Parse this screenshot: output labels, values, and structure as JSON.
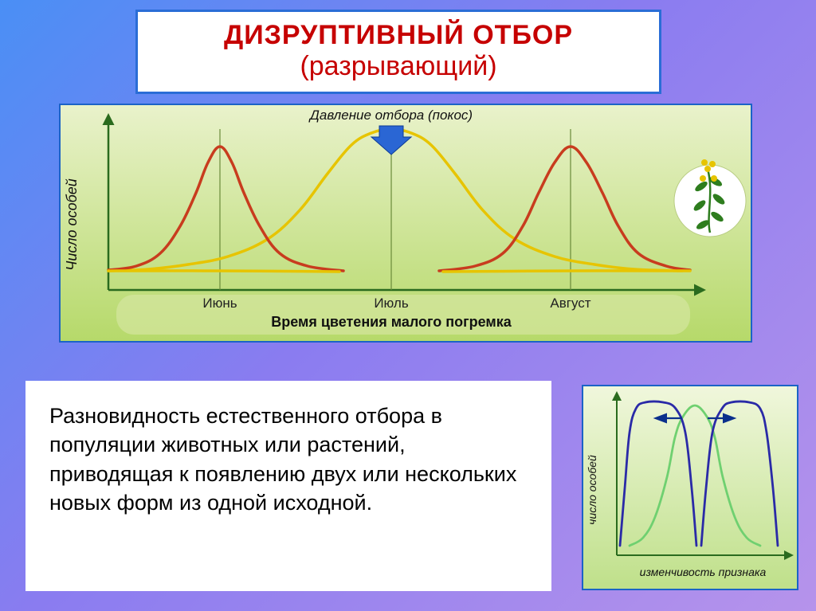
{
  "title": {
    "line1": "ДИЗРУПТИВНЫЙ ОТБОР",
    "line2": "(разрывающий)"
  },
  "description": "Разновидность естественного отбора в популяции животных или растений, приводящая к появлению двух или нескольких новых форм из одной исходной.",
  "main_chart": {
    "type": "line",
    "y_label": "Число особей",
    "x_label": "Время цветения малого погремка",
    "arrow_label": "Давление отбора (покос)",
    "x_ticks": [
      "Июнь",
      "Июль",
      "Август"
    ],
    "x_tick_positions": [
      200,
      415,
      640
    ],
    "x_range": [
      60,
      780
    ],
    "y_range": [
      210,
      30
    ],
    "guide_x": [
      200,
      415,
      640
    ],
    "curves": [
      {
        "name": "original",
        "color": "#e7c400",
        "stroke_width": 3.5,
        "points": [
          [
            60,
            208
          ],
          [
            110,
            206
          ],
          [
            160,
            200
          ],
          [
            210,
            190
          ],
          [
            260,
            168
          ],
          [
            300,
            132
          ],
          [
            335,
            86
          ],
          [
            365,
            50
          ],
          [
            390,
            35
          ],
          [
            415,
            30
          ],
          [
            440,
            35
          ],
          [
            465,
            50
          ],
          [
            495,
            86
          ],
          [
            530,
            132
          ],
          [
            570,
            168
          ],
          [
            620,
            190
          ],
          [
            670,
            200
          ],
          [
            720,
            206
          ],
          [
            780,
            208
          ]
        ]
      },
      {
        "name": "left_peak",
        "color": "#c83c1e",
        "stroke_width": 3.5,
        "points": [
          [
            60,
            207
          ],
          [
            95,
            202
          ],
          [
            125,
            186
          ],
          [
            150,
            152
          ],
          [
            170,
            110
          ],
          [
            185,
            72
          ],
          [
            200,
            52
          ],
          [
            215,
            72
          ],
          [
            230,
            110
          ],
          [
            250,
            152
          ],
          [
            275,
            186
          ],
          [
            310,
            202
          ],
          [
            355,
            208
          ]
        ]
      },
      {
        "name": "right_peak",
        "color": "#c83c1e",
        "stroke_width": 3.5,
        "points": [
          [
            475,
            208
          ],
          [
            520,
            202
          ],
          [
            555,
            186
          ],
          [
            580,
            152
          ],
          [
            600,
            110
          ],
          [
            620,
            72
          ],
          [
            640,
            52
          ],
          [
            660,
            72
          ],
          [
            680,
            110
          ],
          [
            700,
            152
          ],
          [
            725,
            186
          ],
          [
            760,
            202
          ],
          [
            790,
            207
          ]
        ]
      },
      {
        "name": "baseline_left",
        "color": "#e7c400",
        "stroke_width": 3.5,
        "points": [
          [
            60,
            208
          ],
          [
            200,
            208
          ],
          [
            350,
            209
          ]
        ]
      },
      {
        "name": "baseline_right",
        "color": "#e7c400",
        "stroke_width": 3.5,
        "points": [
          [
            480,
            209
          ],
          [
            640,
            208
          ],
          [
            790,
            208
          ]
        ]
      }
    ],
    "bg_gradient": {
      "from": "#e9f2cb",
      "to": "#b6d96a"
    },
    "axis_color": "#2a6b1e",
    "arrow_fill": "#2a66d4",
    "label_band_fill": "#d8e8a6",
    "plant_colors": {
      "bg": "#ffffff",
      "stem": "#2e7d1e",
      "flower": "#e7c400"
    }
  },
  "mini_chart": {
    "type": "line",
    "y_label": "число особей",
    "x_label": "изменчивость признака",
    "x_range": [
      42,
      250
    ],
    "y_range": [
      200,
      20
    ],
    "curves": [
      {
        "name": "center",
        "color": "#6fd070",
        "stroke_width": 2.8,
        "points": [
          [
            58,
            200
          ],
          [
            75,
            190
          ],
          [
            90,
            164
          ],
          [
            105,
            114
          ],
          [
            115,
            64
          ],
          [
            125,
            38
          ],
          [
            140,
            24
          ],
          [
            155,
            38
          ],
          [
            165,
            64
          ],
          [
            175,
            114
          ],
          [
            190,
            164
          ],
          [
            205,
            190
          ],
          [
            222,
            200
          ]
        ]
      },
      {
        "name": "left",
        "color": "#2a2aa7",
        "stroke_width": 2.8,
        "points": [
          [
            46,
            200
          ],
          [
            52,
            128
          ],
          [
            58,
            58
          ],
          [
            66,
            28
          ],
          [
            78,
            20
          ],
          [
            100,
            20
          ],
          [
            116,
            28
          ],
          [
            128,
            58
          ],
          [
            136,
            128
          ],
          [
            142,
            200
          ]
        ]
      },
      {
        "name": "right",
        "color": "#2a2aa7",
        "stroke_width": 2.8,
        "points": [
          [
            148,
            200
          ],
          [
            154,
            128
          ],
          [
            162,
            58
          ],
          [
            174,
            28
          ],
          [
            186,
            20
          ],
          [
            208,
            20
          ],
          [
            222,
            28
          ],
          [
            230,
            58
          ],
          [
            238,
            128
          ],
          [
            244,
            200
          ]
        ]
      }
    ],
    "arrows": [
      {
        "from": [
          124,
          40
        ],
        "to": [
          92,
          40
        ],
        "color": "#0b2f8c"
      },
      {
        "from": [
          156,
          40
        ],
        "to": [
          188,
          40
        ],
        "color": "#0b2f8c"
      }
    ],
    "bg_gradient": {
      "from": "#f0f7dc",
      "to": "#bfe08a"
    },
    "axis_color": "#2a6b1e",
    "label_font_size": 14
  },
  "colors": {
    "title_border": "#2a6dd6",
    "title_text": "#c60000",
    "panel_border": "#1b63c7",
    "body_bg_from": "#4a8ff5",
    "body_bg_to": "#b693eb"
  }
}
